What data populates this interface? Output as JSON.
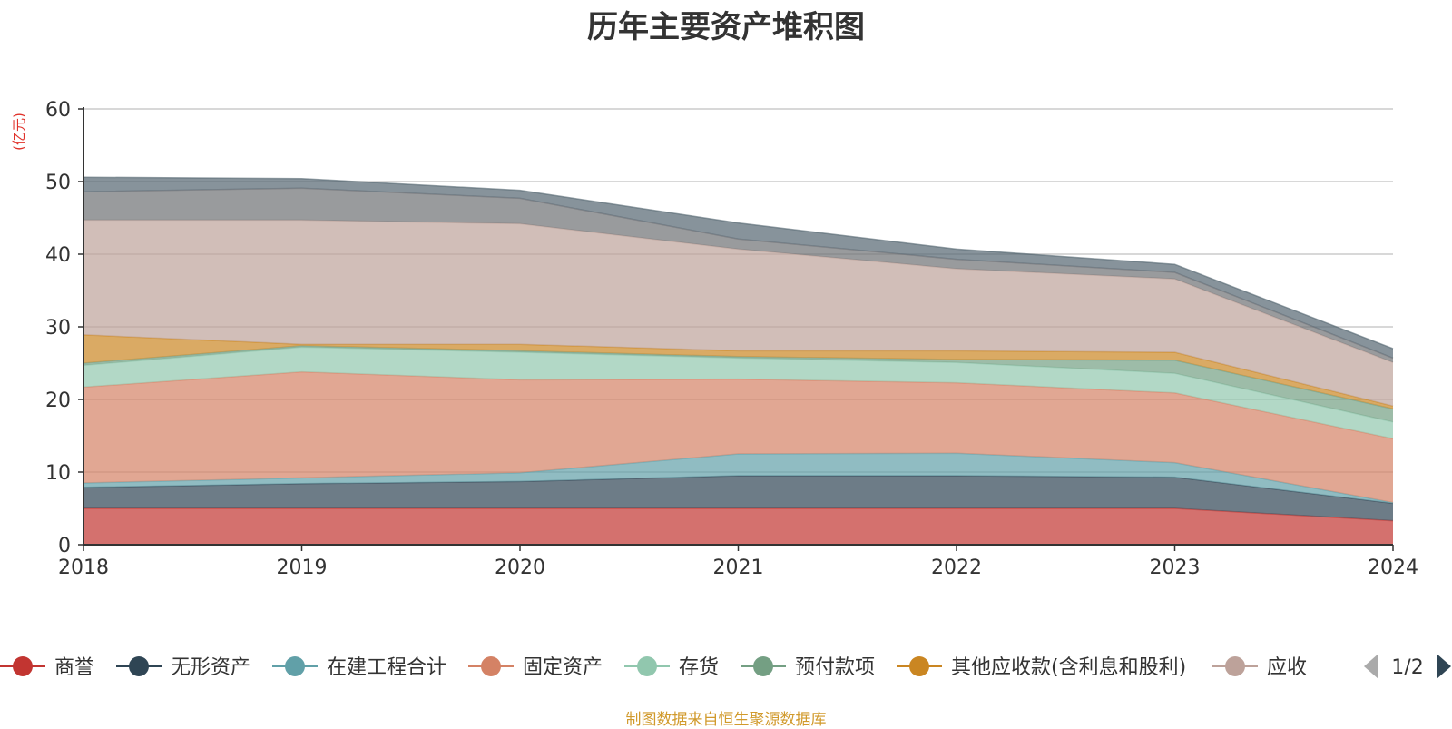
{
  "chart_data": {
    "type": "area",
    "title": "历年主要资产堆积图",
    "ylabel": "(亿元)",
    "xlabel": "",
    "x": [
      "2018",
      "2019",
      "2020",
      "2021",
      "2022",
      "2023",
      "2024"
    ],
    "ylim": [
      0,
      60
    ],
    "yticks": [
      0,
      10,
      20,
      30,
      40,
      50,
      60
    ],
    "grid": true,
    "stacked": true,
    "legend_position": "bottom",
    "series": [
      {
        "name": "商誉",
        "color": "#c23531",
        "values": [
          5.0,
          5.0,
          5.0,
          5.0,
          5.0,
          5.0,
          3.3
        ]
      },
      {
        "name": "无形资产",
        "color": "#2f4554",
        "values": [
          2.9,
          3.4,
          3.7,
          4.5,
          4.5,
          4.3,
          2.4
        ]
      },
      {
        "name": "在建工程合计",
        "color": "#61a0a8",
        "values": [
          0.6,
          0.8,
          1.2,
          3.0,
          3.1,
          2.0,
          0.1
        ]
      },
      {
        "name": "固定资产",
        "color": "#d48265",
        "values": [
          13.2,
          14.6,
          12.8,
          10.3,
          9.7,
          9.6,
          8.8
        ]
      },
      {
        "name": "存货",
        "color": "#91c7ae",
        "values": [
          3.0,
          3.4,
          3.8,
          2.9,
          2.8,
          2.7,
          2.3
        ]
      },
      {
        "name": "预付款项",
        "color": "#749f83",
        "values": [
          0.3,
          0.2,
          0.2,
          0.2,
          0.4,
          1.8,
          1.8
        ]
      },
      {
        "name": "其他应收款(含利息和股利)",
        "color": "#ca8622",
        "values": [
          3.9,
          0.2,
          0.9,
          0.8,
          1.2,
          1.1,
          0.4
        ]
      },
      {
        "name": "应收",
        "color": "#bda29a",
        "values": [
          15.8,
          17.1,
          16.6,
          14.0,
          11.3,
          10.1,
          6.0
        ]
      },
      {
        "name": "",
        "color": "#6e7074",
        "values": [
          3.9,
          4.4,
          3.5,
          1.4,
          1.3,
          0.9,
          0.6
        ]
      },
      {
        "name": "",
        "color": "#546570",
        "values": [
          2.0,
          1.3,
          1.1,
          2.2,
          1.4,
          1.1,
          1.3
        ]
      }
    ],
    "legend": {
      "visible_items": [
        "商誉",
        "无形资产",
        "在建工程合计",
        "固定资产",
        "存货",
        "预付款项",
        "其他应收款(含利息和股利)",
        "应收"
      ],
      "page_indicator": "1/2"
    }
  },
  "footer": "制图数据来自恒生聚源数据库"
}
